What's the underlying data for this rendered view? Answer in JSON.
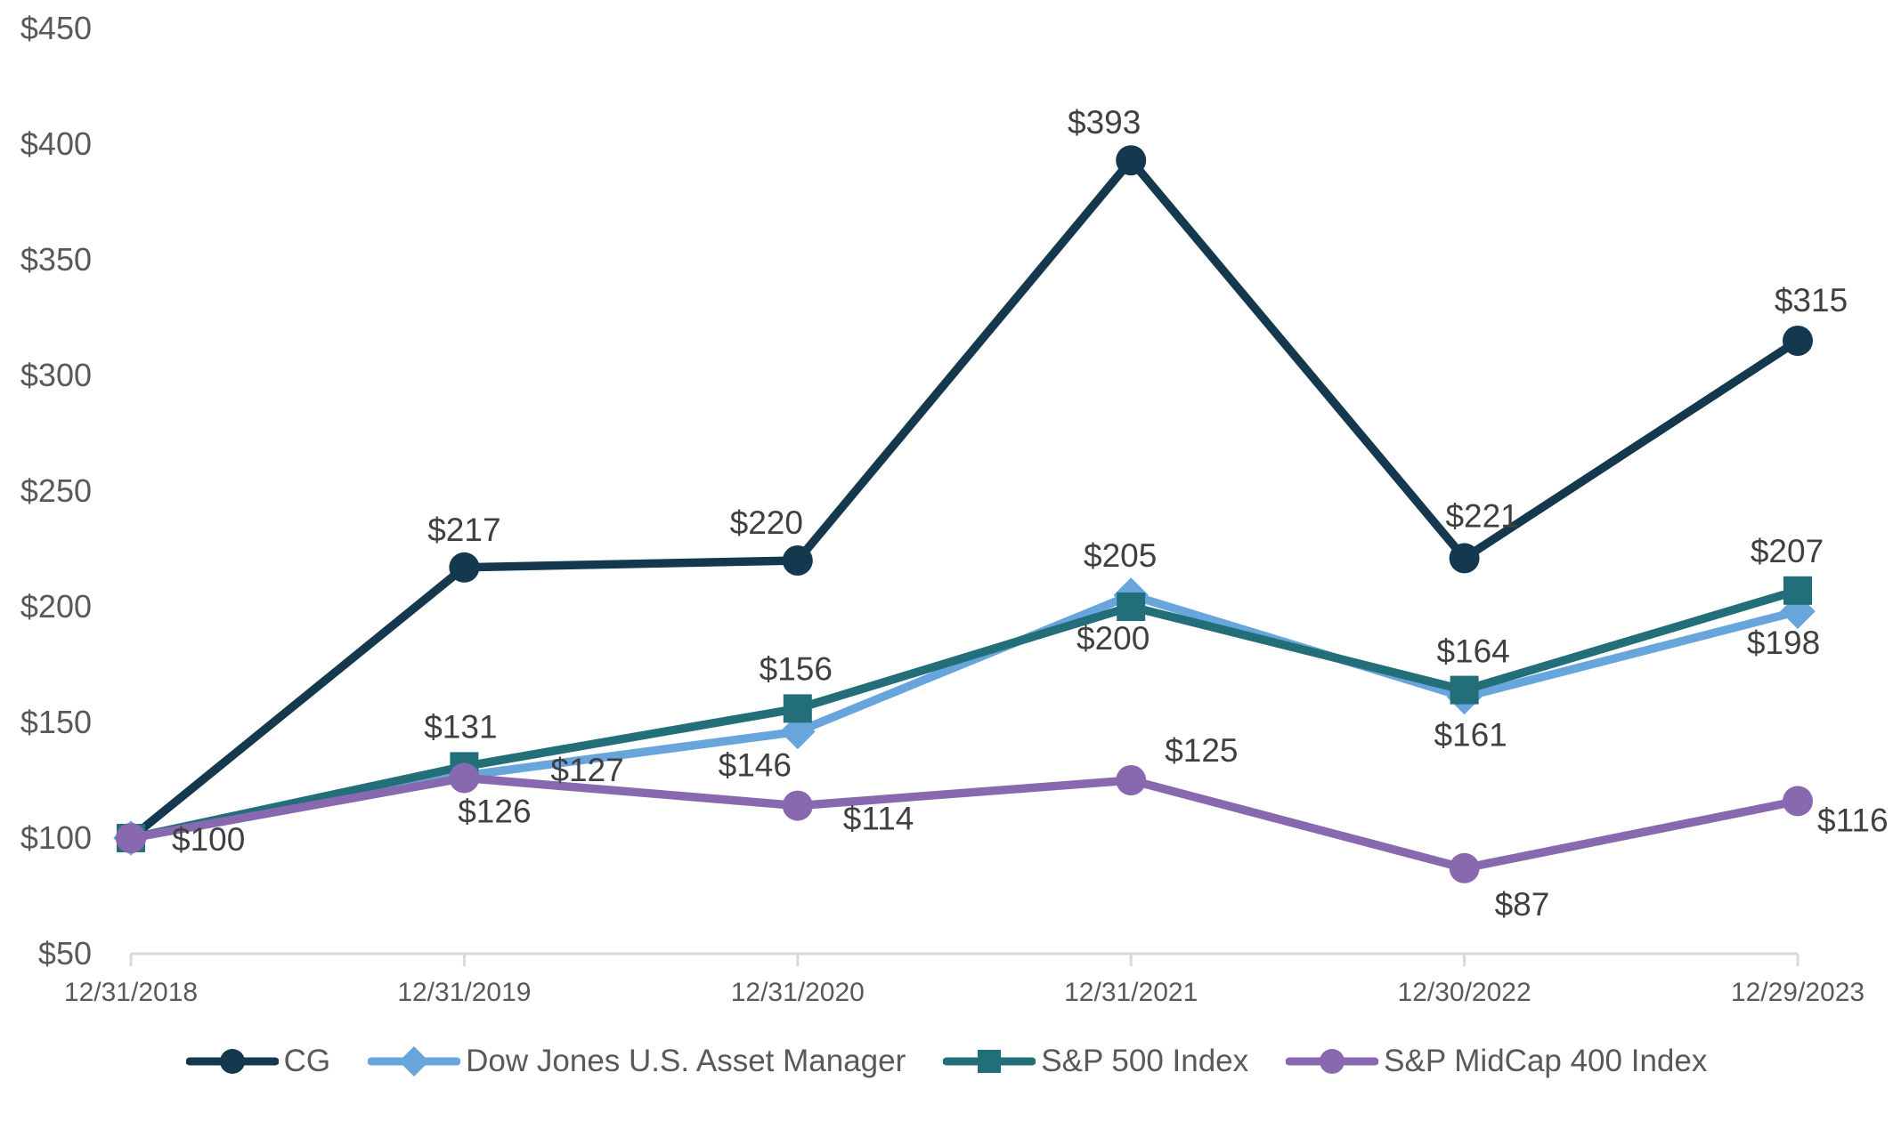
{
  "chart_data": {
    "type": "line",
    "title": "",
    "x_categories": [
      "12/31/2018",
      "12/31/2019",
      "12/31/2020",
      "12/31/2021",
      "12/30/2022",
      "12/29/2023"
    ],
    "y_axis": {
      "ticks": [
        {
          "label": "$450",
          "value": 450
        },
        {
          "label": "$400",
          "value": 400
        },
        {
          "label": "$350",
          "value": 350
        },
        {
          "label": "$300",
          "value": 300
        },
        {
          "label": "$250",
          "value": 250
        },
        {
          "label": "$200",
          "value": 200
        },
        {
          "label": "$150",
          "value": 150
        },
        {
          "label": "$100",
          "value": 100
        },
        {
          "label": "$50",
          "value": 50
        }
      ],
      "min": 50,
      "max": 450
    },
    "grid": false,
    "legend_position": "bottom-center",
    "axis_line_color": "#D9D9D9",
    "axis_label_color": "#595959",
    "data_label_color": "#404040",
    "series": [
      {
        "name": "CG",
        "color": "#14394F",
        "marker": "circle",
        "values": [
          100,
          217,
          220,
          393,
          221,
          315
        ],
        "point_labels": [
          "$100",
          "$217",
          "$220",
          "$393",
          "$221",
          "$315"
        ],
        "label_placements": [
          "right",
          "above",
          "above",
          "above",
          "above",
          "above"
        ],
        "label_nudges": [
          [
            6,
            0
          ],
          [
            0,
            0
          ],
          [
            -35,
            0
          ],
          [
            -30,
            0
          ],
          [
            20,
            -5
          ],
          [
            15,
            -3
          ]
        ]
      },
      {
        "name": "Dow Jones U.S. Asset Manager",
        "color": "#68A5DC",
        "marker": "diamond",
        "values": [
          100,
          127,
          146,
          205,
          161,
          198
        ],
        "point_labels": [
          "",
          "$127",
          "$146",
          "$205",
          "$161",
          "$198"
        ],
        "label_placements": [
          "none",
          "right",
          "below",
          "above",
          "below",
          "below"
        ],
        "label_nudges": [
          [
            0,
            0
          ],
          [
            57,
            -8
          ],
          [
            -48,
            -4
          ],
          [
            -12,
            -2
          ],
          [
            7,
            1
          ],
          [
            -16,
            -6
          ]
        ]
      },
      {
        "name": "S&P 500 Index",
        "color": "#226E79",
        "marker": "square",
        "values": [
          100,
          131,
          156,
          200,
          164,
          207
        ],
        "point_labels": [
          "",
          "$131",
          "$156",
          "$200",
          "$164",
          "$207"
        ],
        "label_placements": [
          "none",
          "above",
          "above",
          "below",
          "above",
          "above"
        ],
        "label_nudges": [
          [
            0,
            0
          ],
          [
            -4,
            -2
          ],
          [
            -2,
            -2
          ],
          [
            -20,
            -6
          ],
          [
            10,
            -1
          ],
          [
            -12,
            -2
          ]
        ]
      },
      {
        "name": "S&P MidCap 400 Index",
        "color": "#8869AF",
        "marker": "circle",
        "values": [
          100,
          126,
          114,
          125,
          87,
          116
        ],
        "point_labels": [
          "",
          "$126",
          "$114",
          "$125",
          "$87",
          "$116"
        ],
        "label_placements": [
          "none",
          "below",
          "below-right",
          "above-right",
          "below-right",
          "right"
        ],
        "label_nudges": [
          [
            0,
            0
          ],
          [
            34,
            -4
          ],
          [
            17,
            -19
          ],
          [
            0,
            -1
          ],
          [
            0,
            7
          ],
          [
            -18,
            20
          ]
        ]
      }
    ]
  }
}
